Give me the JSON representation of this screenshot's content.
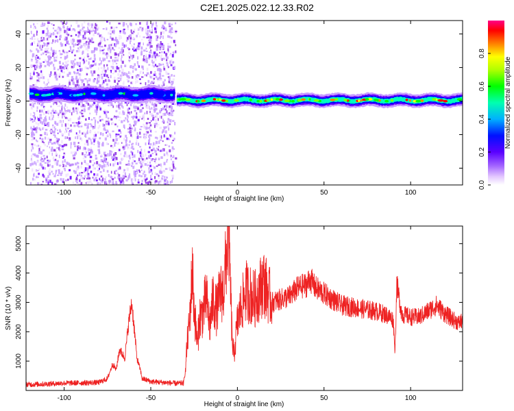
{
  "title": "C2E1.2025.022.12.33.R02",
  "colors": {
    "snr_line": "#ee2222",
    "axis": "#000000",
    "colormap": [
      "#f0e0ff",
      "#c79cff",
      "#8a2be2",
      "#6a00ff",
      "#0000ff",
      "#00c8ff",
      "#00ffc0",
      "#00ff00",
      "#80ff00",
      "#ffff00",
      "#ff8000",
      "#ff0000",
      "#ff0080"
    ]
  },
  "chart_data": [
    {
      "type": "heatmap",
      "xlabel": "Height of straight line (km)",
      "ylabel": "Frequency (Hz)",
      "xlim": [
        -122,
        130
      ],
      "ylim": [
        -50,
        48
      ],
      "xticks": [
        -100,
        -50,
        0,
        50,
        100
      ],
      "xtick_labels": [
        "-100",
        "-50",
        "0",
        "50",
        "100"
      ],
      "yticks": [
        -40,
        -20,
        0,
        20,
        40
      ],
      "ytick_labels": [
        "-40",
        "-20",
        "0",
        "20",
        "40"
      ],
      "grid": false,
      "colorbar": {
        "label": "Normalized spectral amplitude",
        "range": [
          0,
          1
        ],
        "ticks": [
          0,
          0.2,
          0.4,
          0.6,
          0.8
        ],
        "tick_labels": [
          "0.0",
          "0.2",
          "0.4",
          "0.6",
          "0.8"
        ]
      },
      "bands": [
        {
          "x_start": -120,
          "x_end": -36,
          "center_freq": 4,
          "half_width": 3,
          "peak_amplitude": 0.55,
          "noise": "scattered"
        },
        {
          "x_start": -35,
          "x_end": 130,
          "center_freq": 0.5,
          "half_width": 2.5,
          "peak_amplitude": 0.9,
          "noise": "none"
        }
      ]
    },
    {
      "type": "line",
      "xlabel": "Height of straight line (km)",
      "ylabel": "SNR (10 * v/v)",
      "xlim": [
        -122,
        130
      ],
      "ylim": [
        0,
        5600
      ],
      "xticks": [
        -100,
        -50,
        0,
        50,
        100
      ],
      "xtick_labels": [
        "-100",
        "-50",
        "0",
        "50",
        "100"
      ],
      "yticks": [
        1000,
        2000,
        3000,
        4000,
        5000
      ],
      "ytick_labels": [
        "1000",
        "2000",
        "3000",
        "4000",
        "5000"
      ],
      "grid": false,
      "series": [
        {
          "x": [
            -122,
            -110,
            -100,
            -90,
            -80,
            -75,
            -72,
            -70,
            -68,
            -65,
            -63,
            -61,
            -60,
            -58,
            -56,
            -55,
            -52,
            -50,
            -45,
            -40,
            -35,
            -31,
            -30,
            -29,
            -28,
            -27,
            -26,
            -25,
            -23,
            -22,
            -20,
            -18,
            -16,
            -14,
            -12,
            -10,
            -8,
            -6,
            -5,
            -4,
            -3,
            -2,
            0,
            2,
            5,
            10,
            15,
            20,
            25,
            30,
            35,
            40,
            42,
            45,
            50,
            55,
            60,
            65,
            70,
            75,
            80,
            85,
            88,
            90,
            91,
            92,
            95,
            100,
            105,
            110,
            115,
            120,
            125,
            128,
            130
          ],
          "y": [
            200,
            220,
            250,
            260,
            270,
            400,
            900,
            700,
            1400,
            1100,
            2200,
            3000,
            2400,
            1100,
            700,
            400,
            350,
            300,
            280,
            260,
            240,
            250,
            700,
            1600,
            2100,
            3000,
            4200,
            2800,
            1500,
            2500,
            2600,
            3200,
            2200,
            3100,
            2700,
            3300,
            3400,
            4800,
            5500,
            3500,
            1700,
            1200,
            2300,
            2800,
            3400,
            3100,
            3700,
            3000,
            3100,
            3200,
            3500,
            3600,
            3800,
            3500,
            3300,
            3100,
            2900,
            2850,
            2800,
            2750,
            2700,
            2600,
            2500,
            2400,
            1300,
            3600,
            2600,
            2500,
            2500,
            2700,
            2900,
            2600,
            2400,
            2300,
            2400
          ]
        }
      ]
    }
  ]
}
